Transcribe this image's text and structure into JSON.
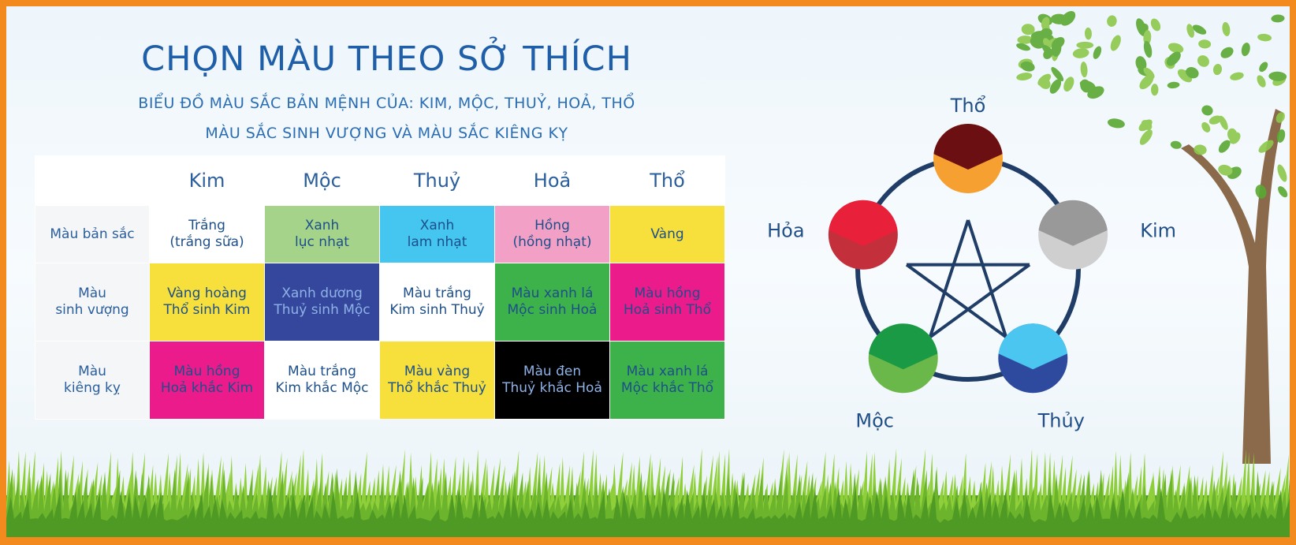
{
  "header": {
    "title": "CHỌN MÀU THEO SỞ THÍCH",
    "subtitle": [
      "BIỂU ĐỒ MÀU SẮC BẢN MỆNH CỦA: KIM, MỘC, THUỶ, HOẢ, THỔ",
      "MÀU SẮC SINH VƯỢNG VÀ MÀU SẮC KIÊNG KỴ"
    ]
  },
  "table": {
    "columns": [
      "Kim",
      "Mộc",
      "Thuỷ",
      "Hoả",
      "Thổ"
    ],
    "rows": [
      {
        "label": [
          "Màu bản sắc"
        ],
        "cells": [
          [
            "Trắng",
            "(trắng sữa)"
          ],
          [
            "Xanh",
            "lục nhạt"
          ],
          [
            "Xanh",
            "lam nhạt"
          ],
          [
            "Hồng",
            "(hồng nhạt)"
          ],
          [
            "Vàng"
          ]
        ]
      },
      {
        "label": [
          "Màu",
          "sinh vượng"
        ],
        "cells": [
          [
            "Vàng hoàng",
            "Thổ sinh Kim"
          ],
          [
            "Xanh dương",
            "Thuỷ sinh Mộc"
          ],
          [
            "Màu trắng",
            "Kim sinh Thuỷ"
          ],
          [
            "Màu xanh lá",
            "Mộc sinh Hoả"
          ],
          [
            "Màu hồng",
            "Hoả sinh Thổ"
          ]
        ]
      },
      {
        "label": [
          "Màu",
          "kiêng kỵ"
        ],
        "cells": [
          [
            "Màu hồng",
            "Hoả khắc Kim"
          ],
          [
            "Màu trắng",
            "Kim khắc Mộc"
          ],
          [
            "Màu vàng",
            "Thổ khắc Thuỷ"
          ],
          [
            "Màu đen",
            "Thuỷ khắc Hoả"
          ],
          [
            "Màu xanh lá",
            "Mộc khắc Thổ"
          ]
        ]
      }
    ]
  },
  "diagram": {
    "nodes": [
      {
        "label": "Thổ"
      },
      {
        "label": "Kim"
      },
      {
        "label": "Thủy"
      },
      {
        "label": "Mộc"
      },
      {
        "label": "Hỏa"
      }
    ]
  }
}
